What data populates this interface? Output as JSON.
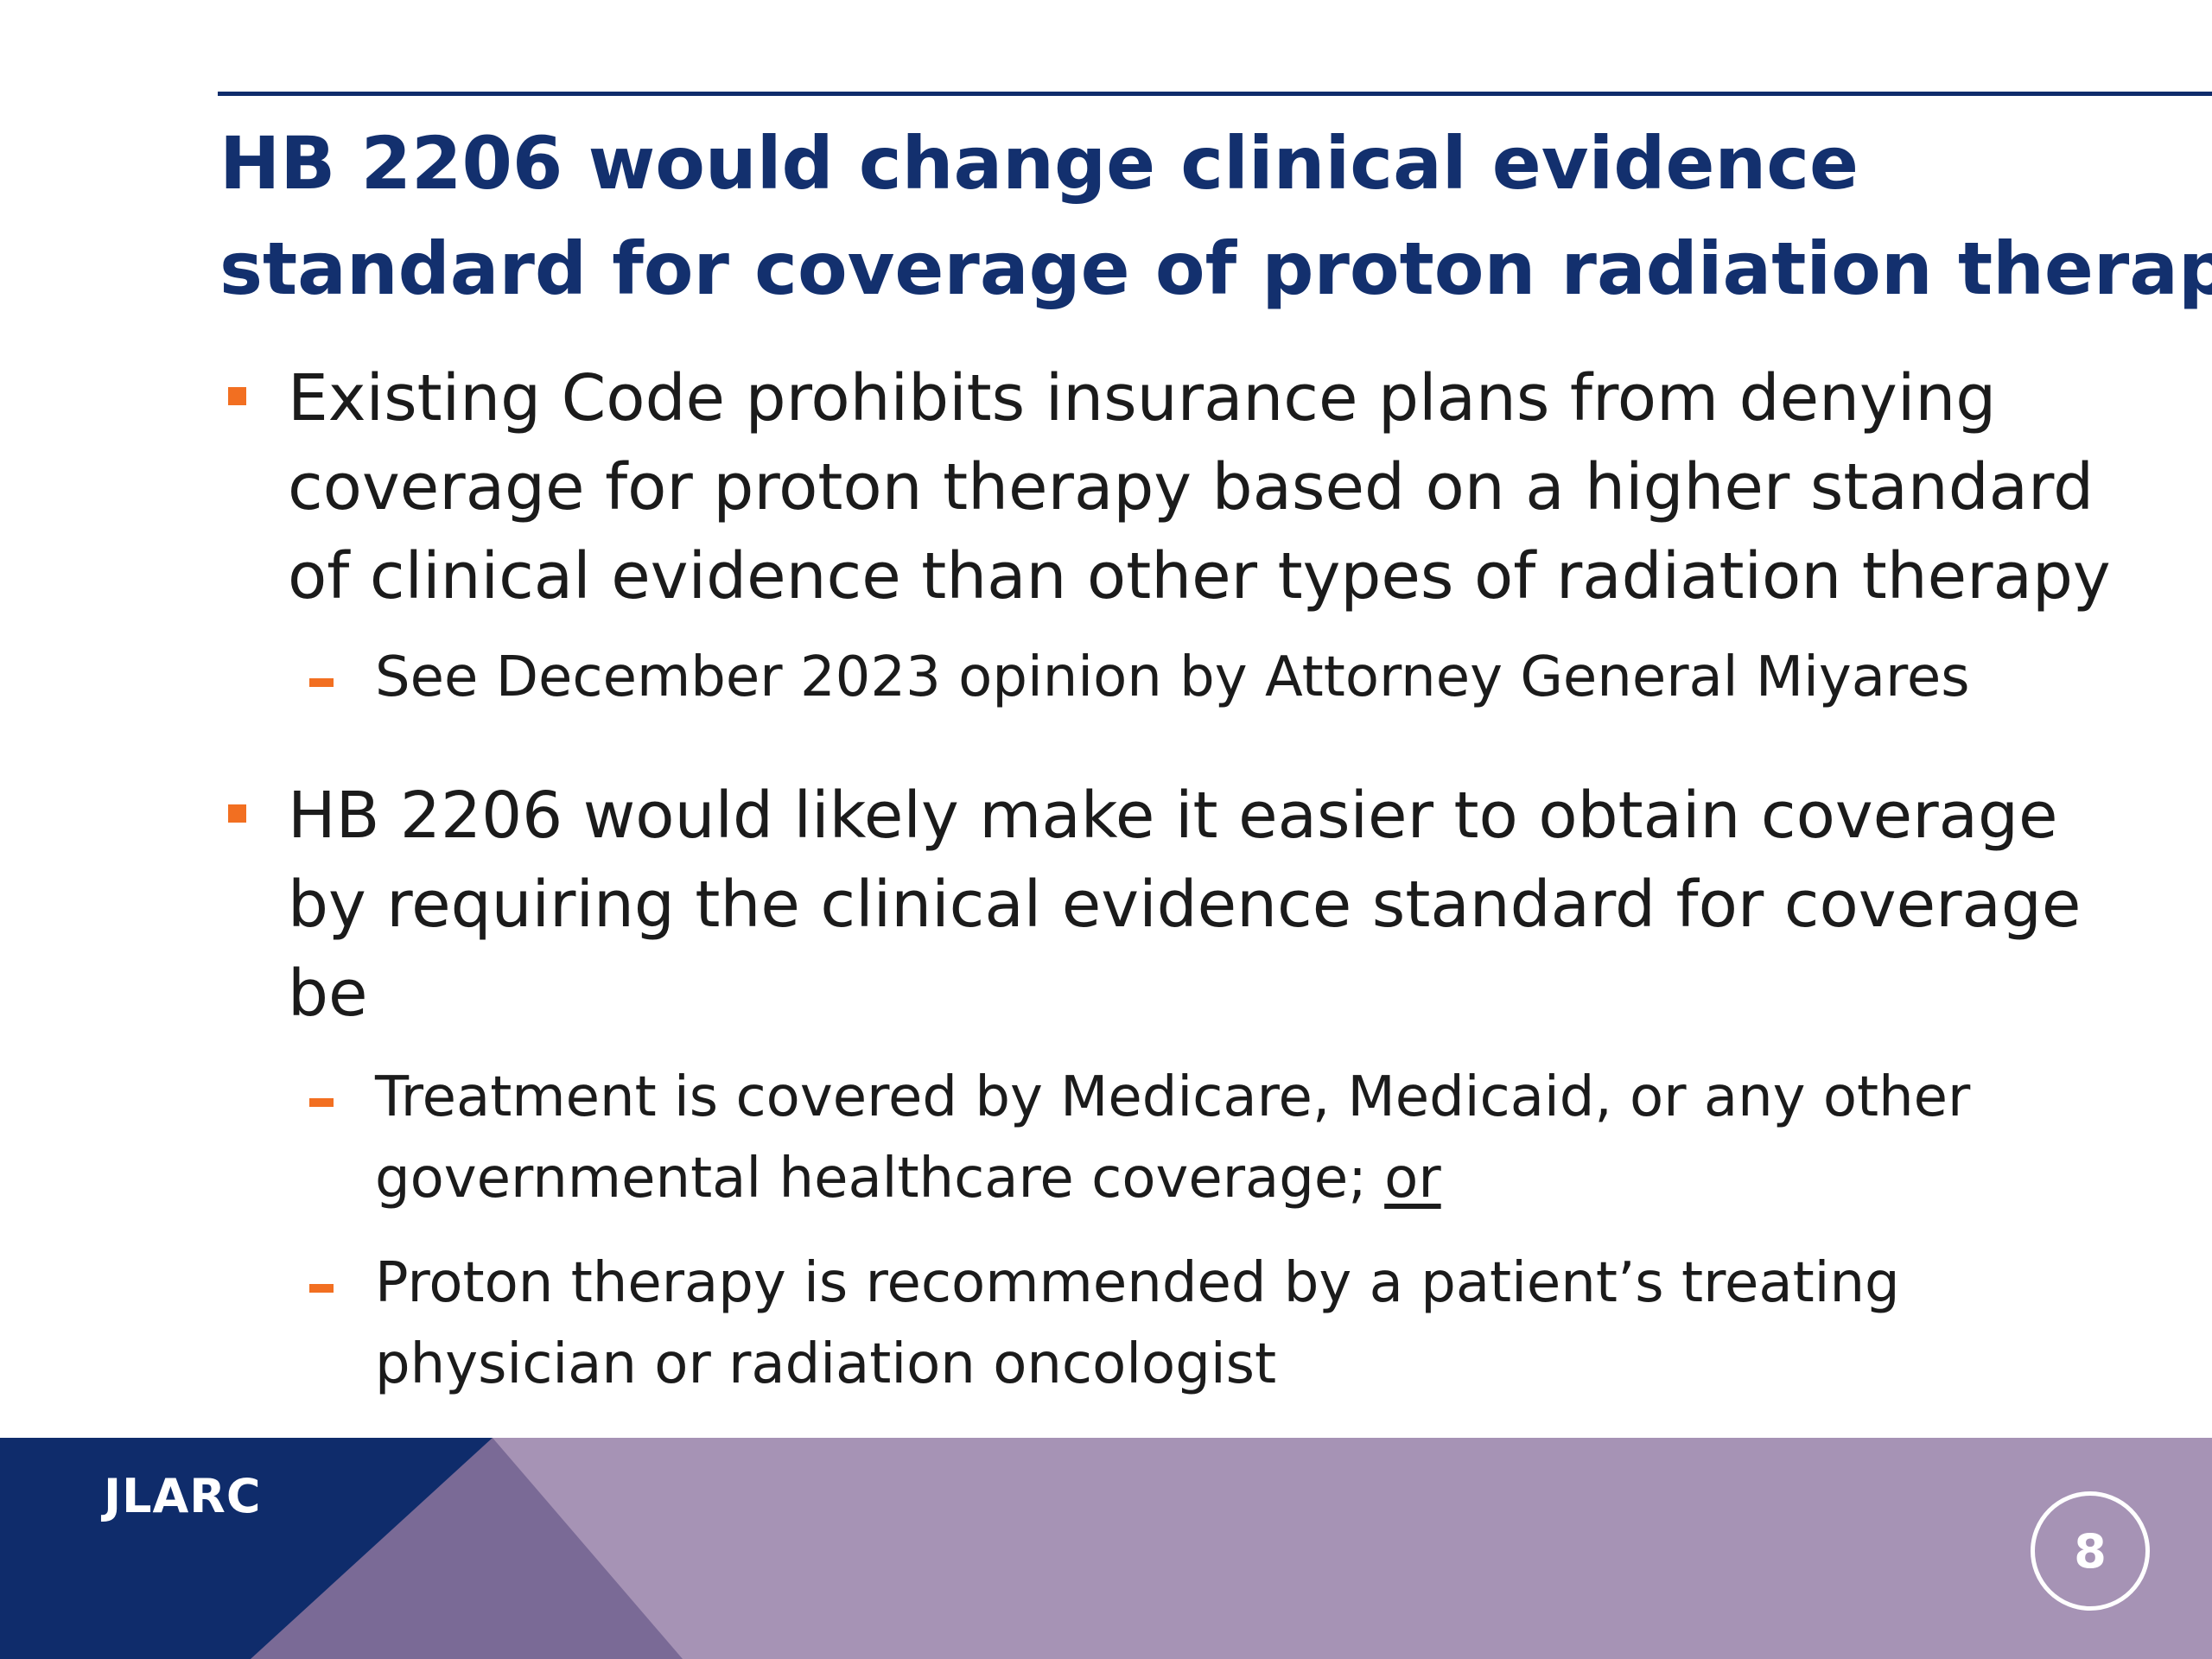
{
  "slide": {
    "title_lines": [
      "HB 2206 would change clinical evidence",
      "standard for coverage of proton radiation therapy"
    ],
    "bullets": [
      {
        "lines": [
          "Existing Code prohibits insurance plans from denying",
          "coverage for proton therapy based on a higher standard",
          "of clinical evidence than other types of radiation therapy"
        ],
        "subs": [
          {
            "lines": [
              "See December 2023 opinion by Attorney General Miyares"
            ]
          }
        ]
      },
      {
        "lines": [
          "HB 2206 would likely make it easier to obtain coverage",
          "by requiring the clinical evidence standard for coverage",
          "be"
        ],
        "subs": [
          {
            "lines": [
              "Treatment is covered by Medicare, Medicaid, or any other"
            ],
            "line2_prefix": "governmental healthcare coverage; ",
            "line2_underlined": "or"
          },
          {
            "lines": [
              "Proton therapy is recommended by a patient’s treating",
              "physician or radiation oncologist"
            ]
          }
        ]
      }
    ]
  },
  "footer": {
    "logo_text": "JLARC",
    "page_number": "8",
    "colors": {
      "navy": "#0f2c6b",
      "violet": "#7a6a96",
      "lavender": "#a693b5"
    }
  },
  "colors": {
    "title": "#13306e",
    "rule": "#0f2c6b",
    "accent": "#f26f21",
    "text": "#1b1b1b"
  }
}
